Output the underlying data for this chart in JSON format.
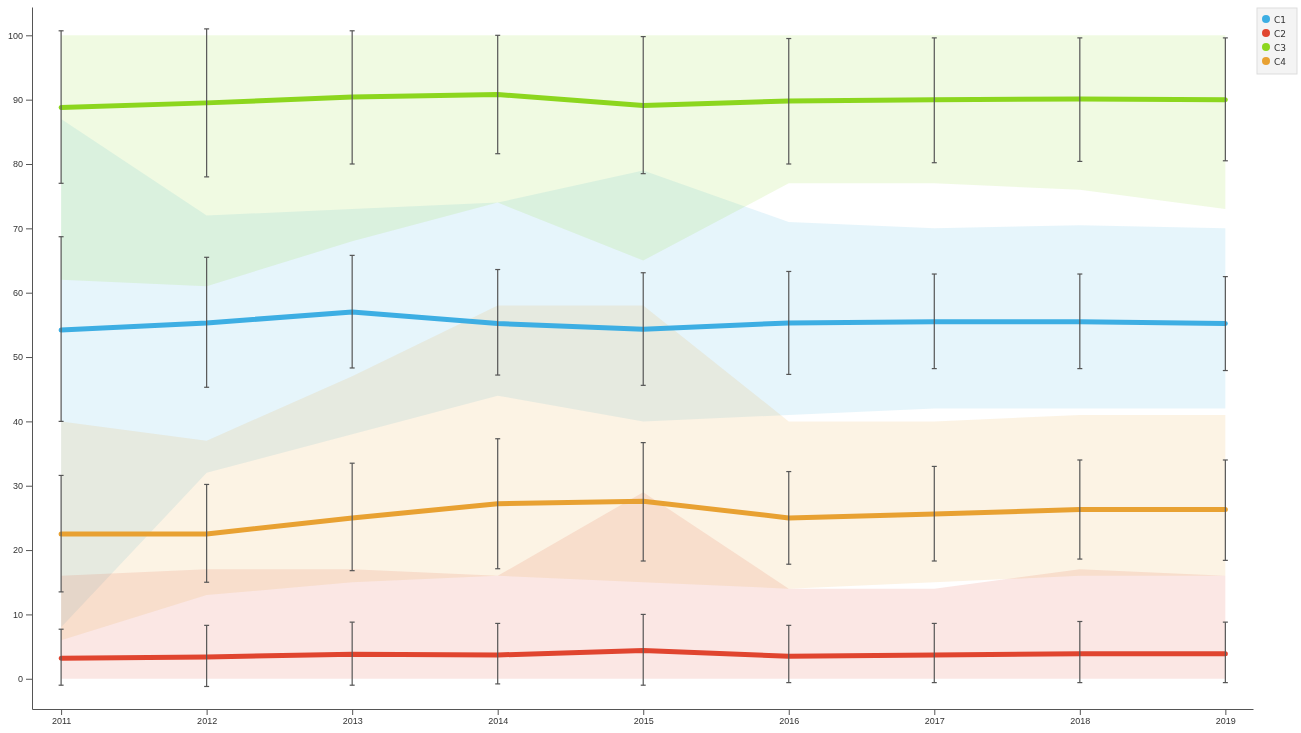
{
  "chart_data": {
    "type": "line",
    "x": [
      2011,
      2012,
      2013,
      2014,
      2015,
      2016,
      2017,
      2018,
      2019
    ],
    "xlim": [
      2010.8,
      2019.19
    ],
    "xticks": [
      2011,
      2012,
      2013,
      2014,
      2015,
      2016,
      2017,
      2018,
      2019
    ],
    "ylim": [
      -4.7,
      104.4
    ],
    "yticks": [
      0,
      10,
      20,
      30,
      40,
      50,
      60,
      70,
      80,
      90,
      100
    ],
    "grid": false,
    "legend": "top right",
    "line_style": "solid",
    "series": [
      {
        "name": "C1",
        "color": "#3daee3",
        "values": [
          54.2,
          55.3,
          57,
          55.2,
          54.3,
          55.3,
          55.5,
          55.5,
          55.2
        ],
        "errors": [
          [
            40,
            68.7
          ],
          [
            45.3,
            65.5
          ],
          [
            48.3,
            65.8
          ],
          [
            47.2,
            63.6
          ],
          [
            45.6,
            63.1
          ],
          [
            47.3,
            63.3
          ],
          [
            48.2,
            62.9
          ],
          [
            48.2,
            62.9
          ],
          [
            47.9,
            62.5
          ]
        ],
        "lower": [
          8,
          32,
          38,
          44,
          40,
          41,
          42,
          42,
          42
        ],
        "upper": [
          87,
          72,
          73,
          74,
          79,
          71,
          70,
          70.5,
          70
        ]
      },
      {
        "name": "C2",
        "color": "#e0452f",
        "values": [
          3.2,
          3.4,
          3.8,
          3.7,
          4.4,
          3.5,
          3.7,
          3.9,
          3.9
        ],
        "errors": [
          [
            -1,
            7.7
          ],
          [
            -1.2,
            8.3
          ],
          [
            -1,
            8.8
          ],
          [
            -0.8,
            8.6
          ],
          [
            -1,
            10
          ],
          [
            -0.6,
            8.3
          ],
          [
            -0.6,
            8.6
          ],
          [
            -0.6,
            8.9
          ],
          [
            -0.6,
            8.8
          ]
        ],
        "lower": [
          0,
          0,
          0,
          0,
          0,
          0,
          0,
          0,
          0
        ],
        "upper": [
          16,
          17,
          17,
          16,
          29,
          14,
          14,
          17,
          16
        ]
      },
      {
        "name": "C3",
        "color": "#8cd61e",
        "values": [
          88.8,
          89.5,
          90.4,
          90.8,
          89.1,
          89.8,
          90,
          90.1,
          90
        ],
        "errors": [
          [
            77,
            100.7
          ],
          [
            78,
            101
          ],
          [
            80,
            100.7
          ],
          [
            81.6,
            100
          ],
          [
            78.5,
            99.8
          ],
          [
            80,
            99.5
          ],
          [
            80.2,
            99.6
          ],
          [
            80.4,
            99.6
          ],
          [
            80.5,
            99.6
          ]
        ],
        "lower": [
          62,
          61,
          68,
          74,
          65,
          77,
          77,
          76,
          73
        ],
        "upper": [
          100,
          100,
          100,
          100,
          100,
          100,
          100,
          100,
          100
        ]
      },
      {
        "name": "C4",
        "color": "#e8a132",
        "values": [
          22.5,
          22.5,
          25,
          27.2,
          27.6,
          25,
          25.6,
          26.3,
          26.3
        ],
        "errors": [
          [
            13.5,
            31.6
          ],
          [
            15,
            30.2
          ],
          [
            16.8,
            33.5
          ],
          [
            17.1,
            37.3
          ],
          [
            18.3,
            36.7
          ],
          [
            17.8,
            32.2
          ],
          [
            18.3,
            33
          ],
          [
            18.6,
            34
          ],
          [
            18.4,
            34
          ]
        ],
        "lower": [
          6,
          13,
          15,
          16,
          15,
          14,
          15,
          16,
          16
        ],
        "upper": [
          40,
          37,
          47,
          58,
          58,
          40,
          40,
          41,
          41
        ]
      }
    ]
  }
}
